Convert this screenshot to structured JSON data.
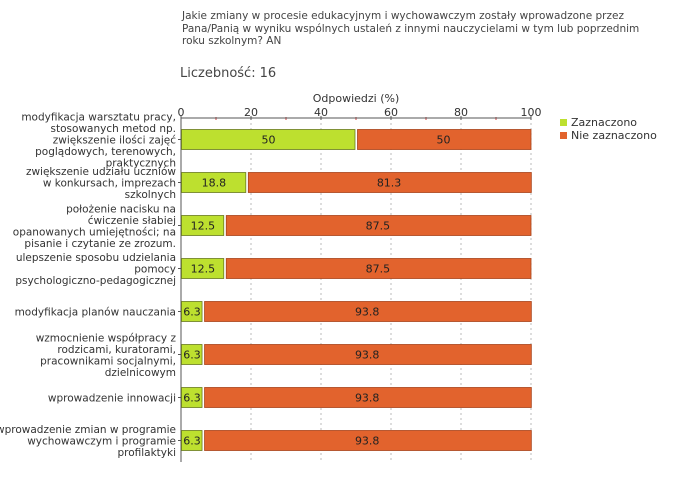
{
  "header": {
    "question": "Jakie zmiany w procesie edukacyjnym i wychowawczym zostały wprowadzone przez Pana/Panią w wyniku wspólnych ustaleń z innymi nauczycielami w tym lub poprzednim roku szkolnym? AN",
    "count_label": "Liczebność:",
    "count_value": "16"
  },
  "colors": {
    "selected": "#bde02f",
    "not_selected": "#e2632d",
    "bar_border": "#6a7a20"
  },
  "chart_data": {
    "type": "bar",
    "orientation": "horizontal",
    "stacked": true,
    "title": "Odpowiedzi (%)",
    "xlim": [
      0,
      100
    ],
    "xticks": [
      "0",
      "20",
      "40",
      "60",
      "80",
      "100"
    ],
    "legend_position": "top-right",
    "categories": [
      [
        "modyfikacja warsztatu pracy,",
        "stosowanych metod np.",
        "zwiększenie ilości zajęć",
        "poglądowych, terenowych,",
        "praktycznych"
      ],
      [
        "zwiększenie udziału uczniów",
        "w konkursach, imprezach",
        "szkolnych"
      ],
      [
        "położenie nacisku na",
        "ćwiczenie słabiej",
        "opanowanych umiejętności; na",
        "pisanie i czytanie ze zrozum."
      ],
      [
        "ulepszenie sposobu udzielania",
        "pomocy",
        "psychologiczno-pedagogicznej"
      ],
      [
        "modyfikacja planów nauczania"
      ],
      [
        "wzmocnienie współpracy z",
        "rodzicami, kuratorami,",
        "pracownikami socjalnymi,",
        "dzielnicowym"
      ],
      [
        "wprowadzenie innowacji"
      ],
      [
        "wprowadzenie zmian w programie",
        "wychowawczym i programie",
        "profilaktyki"
      ]
    ],
    "series": [
      {
        "name": "Zaznaczono",
        "values": [
          50,
          18.8,
          12.5,
          12.5,
          6.3,
          6.3,
          6.3,
          6.3
        ],
        "labels": [
          "50",
          "18.8",
          "12.5",
          "12.5",
          "6.3",
          "6.3",
          "6.3",
          "6.3"
        ]
      },
      {
        "name": "Nie zaznaczono",
        "values": [
          50,
          81.3,
          87.5,
          87.5,
          93.8,
          93.8,
          93.8,
          93.8
        ],
        "labels": [
          "50",
          "81.3",
          "87.5",
          "87.5",
          "93.8",
          "93.8",
          "93.8",
          "93.8"
        ]
      }
    ]
  }
}
